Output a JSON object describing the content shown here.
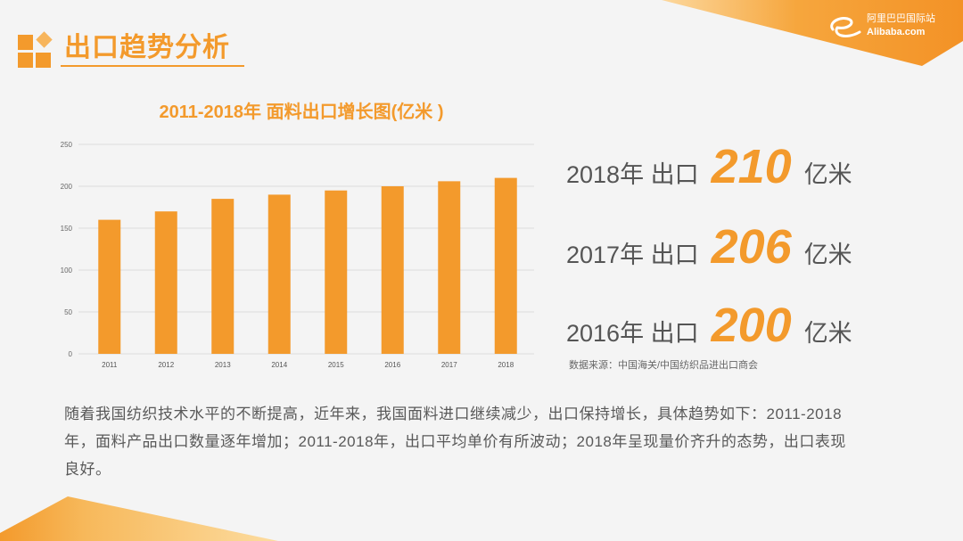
{
  "slide": {
    "title": "出口趋势分析",
    "brand": {
      "cn": "阿里巴巴国际站",
      "en": "Alibaba.com"
    },
    "icons": {
      "title_mark": "squares-diamond-icon",
      "brand_mark": "alibaba-e-icon"
    },
    "colors": {
      "accent": "#f39a2c",
      "text": "#555555",
      "background": "#f4f4f4"
    }
  },
  "chart_data": {
    "type": "bar",
    "title": "2011-2018年 面料出口增长图(亿米 )",
    "categories": [
      "2011",
      "2012",
      "2013",
      "2014",
      "2015",
      "2016",
      "2017",
      "2018"
    ],
    "values": [
      160,
      170,
      185,
      190,
      195,
      200,
      206,
      210
    ],
    "yticks": [
      0,
      50,
      100,
      150,
      200,
      250
    ],
    "ylim": [
      0,
      250
    ],
    "grid": true,
    "bar_color": "#f39a2c"
  },
  "highlights": [
    {
      "label": "2018年 出口",
      "value": "210",
      "unit": "亿米"
    },
    {
      "label": "2017年 出口",
      "value": "206",
      "unit": "亿米"
    },
    {
      "label": "2016年 出口",
      "value": "200",
      "unit": "亿米"
    }
  ],
  "source": "数据来源：中国海关/中国纺织品进出口商会",
  "paragraph": "随着我国纺织技术水平的不断提高，近年来，我国面料进口继续减少，出口保持增长，具体趋势如下：2011-2018年，面料产品出口数量逐年增加；2011-2018年，出口平均单价有所波动；2018年呈现量价齐升的态势，出口表现良好。"
}
